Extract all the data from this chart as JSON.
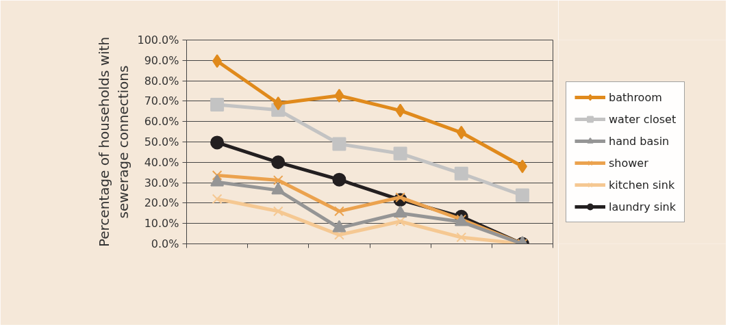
{
  "chart_data": {
    "type": "line",
    "ylabel": "Percentage of households with\nsewerage connections",
    "categories": [
      null,
      null,
      null,
      null,
      null,
      null
    ],
    "ylim": [
      0,
      100
    ],
    "yticks": [
      {
        "value": 0,
        "label": "0.0%"
      },
      {
        "value": 10,
        "label": "10.0%"
      },
      {
        "value": 20,
        "label": "20.0%"
      },
      {
        "value": 30,
        "label": "30.0%"
      },
      {
        "value": 40,
        "label": "40.0%"
      },
      {
        "value": 50,
        "label": "50.0%"
      },
      {
        "value": 60,
        "label": "60.0%"
      },
      {
        "value": 70,
        "label": "70.0%"
      },
      {
        "value": 80,
        "label": "80.0%"
      },
      {
        "value": 90,
        "label": "90.0%"
      },
      {
        "value": 100,
        "label": "100.0%"
      }
    ],
    "grid": "y",
    "legend": "right",
    "tick_labels": "y",
    "series": [
      {
        "name": "bathroom",
        "color": "#e08a1c",
        "marker": "diamond",
        "values": [
          89.7,
          68.9,
          72.7,
          65.4,
          54.6,
          38.0
        ]
      },
      {
        "name": "water closet",
        "color": "#c3c3c3",
        "marker": "square",
        "values": [
          68.3,
          65.7,
          49.0,
          44.3,
          34.5,
          23.8
        ]
      },
      {
        "name": "hand basin",
        "color": "#959595",
        "marker": "triangle",
        "values": [
          30.3,
          26.3,
          7.8,
          15.0,
          10.8,
          0
        ]
      },
      {
        "name": "shower",
        "color": "#eba24e",
        "marker": "cross",
        "values": [
          33.6,
          31.2,
          16.0,
          22.8,
          12.0,
          0
        ]
      },
      {
        "name": "kitchen sink",
        "color": "#f5c892",
        "marker": "cross",
        "values": [
          22.0,
          16.0,
          4.4,
          11.0,
          3.2,
          0
        ]
      },
      {
        "name": "laundry sink",
        "color": "#231f20",
        "marker": "circle",
        "values": [
          49.7,
          40.0,
          31.5,
          21.6,
          13.3,
          0
        ]
      }
    ]
  }
}
